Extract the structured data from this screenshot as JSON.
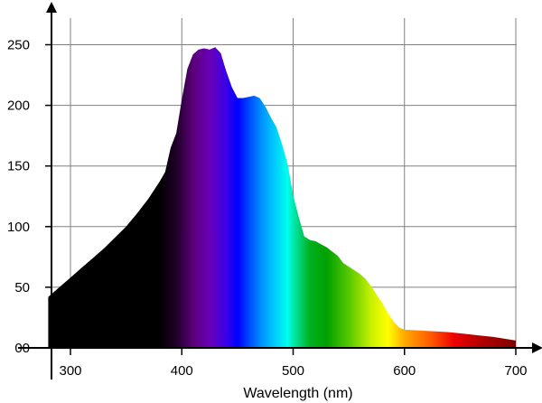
{
  "chart_data": {
    "type": "area",
    "title": "",
    "xlabel": "Wavelength (nm)",
    "ylabel": "",
    "xlim": [
      280,
      700
    ],
    "ylim": [
      0,
      262
    ],
    "grid": true,
    "legend": "none",
    "x_ticks": [
      300,
      400,
      500,
      600,
      700
    ],
    "x_tick_labels": [
      "300",
      "400",
      "500",
      "600",
      "700"
    ],
    "y_ticks": [
      0,
      50,
      100,
      150,
      200,
      250
    ],
    "y_tick_labels": [
      "00",
      "50",
      "100",
      "150",
      "200",
      "250"
    ],
    "series": [
      {
        "x": [
          280,
          290,
          300,
          310,
          320,
          330,
          340,
          350,
          360,
          370,
          380,
          385,
          390,
          395,
          400,
          405,
          410,
          415,
          420,
          425,
          430,
          435,
          440,
          445,
          450,
          455,
          460,
          465,
          470,
          475,
          480,
          485,
          490,
          495,
          500,
          505,
          510,
          515,
          520,
          530,
          540,
          545,
          550,
          555,
          560,
          565,
          570,
          575,
          580,
          585,
          590,
          595,
          600,
          610,
          620,
          630,
          640,
          650,
          660,
          670,
          680,
          690,
          700
        ],
        "values": [
          42,
          50,
          58,
          66,
          74,
          82,
          91,
          100,
          111,
          123,
          137,
          145,
          165,
          177,
          205,
          230,
          242,
          246,
          247,
          246,
          248,
          243,
          228,
          215,
          206,
          206,
          207,
          208,
          206,
          199,
          190,
          182,
          168,
          152,
          126,
          108,
          92,
          89,
          88,
          83,
          76,
          70,
          67,
          64,
          61,
          57,
          51,
          44,
          37,
          29,
          22,
          17,
          15,
          14.5,
          14,
          13.5,
          13,
          12,
          11,
          10,
          9,
          7.5,
          6
        ]
      }
    ],
    "spectrum_colors": [
      {
        "x": 280,
        "color": "#000000"
      },
      {
        "x": 380,
        "color": "#000000"
      },
      {
        "x": 395,
        "color": "#200028"
      },
      {
        "x": 410,
        "color": "#5a0078"
      },
      {
        "x": 425,
        "color": "#6a00b8"
      },
      {
        "x": 440,
        "color": "#3a00e8"
      },
      {
        "x": 450,
        "color": "#0000ff"
      },
      {
        "x": 470,
        "color": "#0088ff"
      },
      {
        "x": 480,
        "color": "#00bbff"
      },
      {
        "x": 495,
        "color": "#00ffee"
      },
      {
        "x": 500,
        "color": "#00e8b0"
      },
      {
        "x": 515,
        "color": "#00b020"
      },
      {
        "x": 530,
        "color": "#00a000"
      },
      {
        "x": 550,
        "color": "#55c800"
      },
      {
        "x": 570,
        "color": "#c8f000"
      },
      {
        "x": 585,
        "color": "#ffff00"
      },
      {
        "x": 600,
        "color": "#ffaa00"
      },
      {
        "x": 625,
        "color": "#ff5500"
      },
      {
        "x": 645,
        "color": "#ee0000"
      },
      {
        "x": 670,
        "color": "#b00000"
      },
      {
        "x": 700,
        "color": "#800000"
      }
    ]
  }
}
